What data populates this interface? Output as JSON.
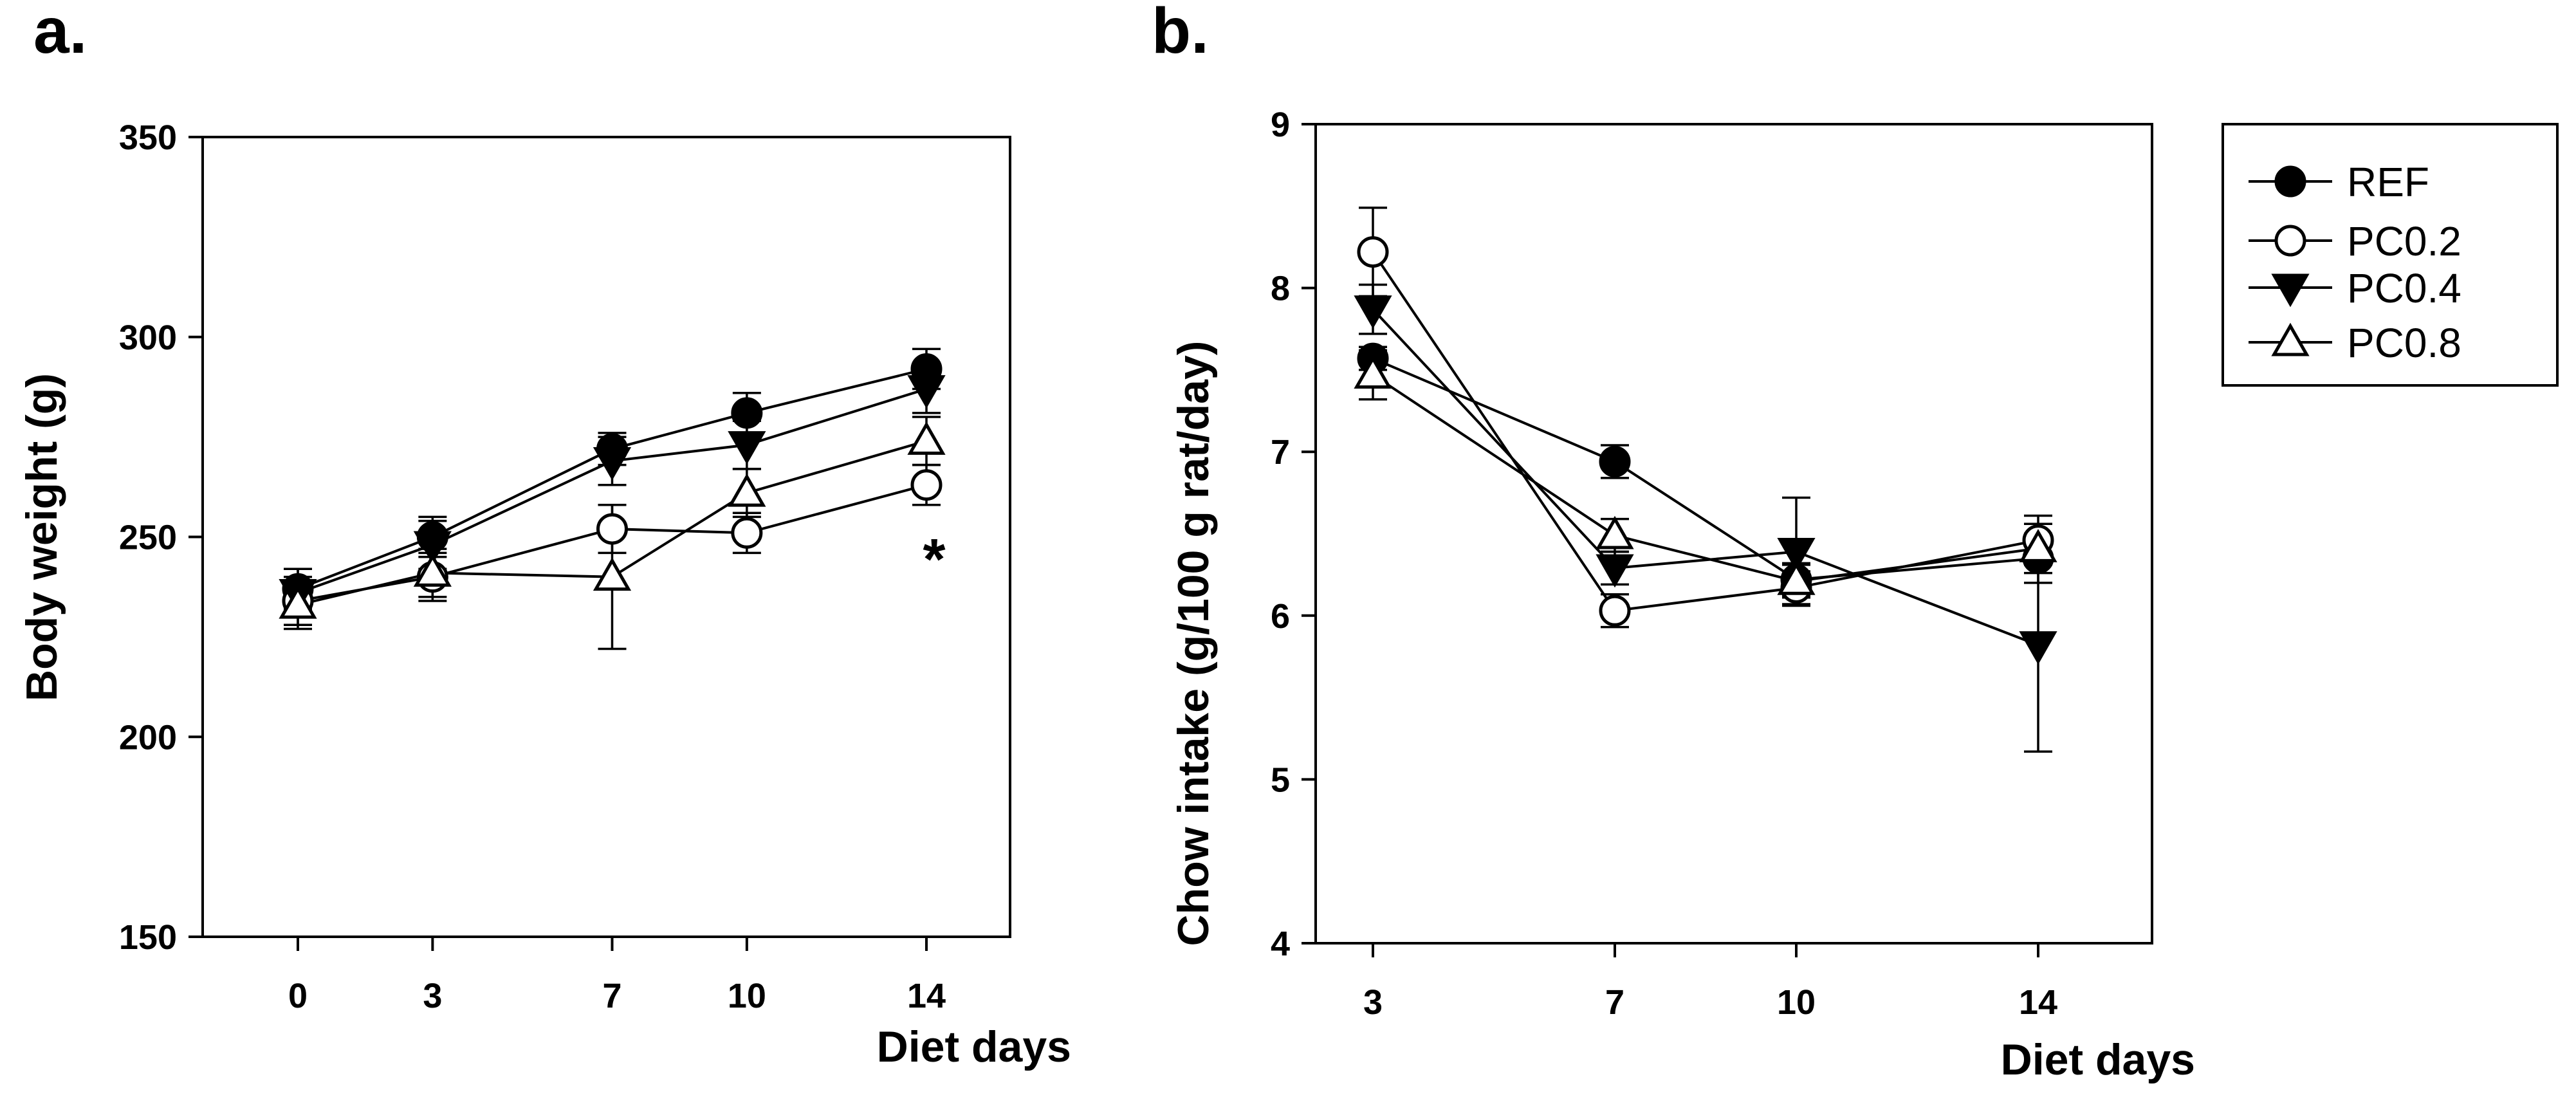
{
  "chart_data": [
    {
      "type": "line",
      "panel": "a.",
      "title": "",
      "ylabel": "Body weight (g)",
      "xlabel": "Diet days",
      "x": [
        0,
        3,
        7,
        10,
        14
      ],
      "xticks": [
        "0",
        "3",
        "7",
        "10",
        "14"
      ],
      "ylim": [
        150,
        350
      ],
      "yticks": [
        "150",
        "200",
        "250",
        "300",
        "350"
      ],
      "grid": false,
      "annotation": "*",
      "series": [
        {
          "name": "REF",
          "marker": "circle-filled",
          "values": [
            237,
            250,
            272,
            281,
            292
          ],
          "errors": [
            5,
            5,
            4,
            5,
            5
          ]
        },
        {
          "name": "PC0.2",
          "marker": "circle-open",
          "values": [
            234,
            240,
            252,
            251,
            263
          ],
          "errors": [
            6,
            6,
            6,
            5,
            5
          ]
        },
        {
          "name": "PC0.4",
          "marker": "triangle-down-filled",
          "values": [
            236,
            248,
            269,
            273,
            287
          ],
          "errors": [
            6,
            6,
            6,
            6,
            6
          ]
        },
        {
          "name": "PC0.8",
          "marker": "triangle-up-open",
          "values": [
            233,
            241,
            240,
            261,
            274
          ],
          "errors": [
            6,
            6,
            18,
            6,
            6
          ]
        }
      ]
    },
    {
      "type": "line",
      "panel": "b.",
      "title": "",
      "ylabel": "Chow intake (g/100 g rat/day)",
      "xlabel": "Diet days",
      "x": [
        3,
        7,
        10,
        14
      ],
      "xticks": [
        "3",
        "7",
        "10",
        "14"
      ],
      "ylim": [
        4,
        9
      ],
      "yticks": [
        "4",
        "5",
        "6",
        "7",
        "8",
        "9"
      ],
      "grid": false,
      "legend_position": "outside-right",
      "series": [
        {
          "name": "REF",
          "marker": "circle-filled",
          "values": [
            7.57,
            6.94,
            6.22,
            6.35
          ],
          "errors": [
            0.07,
            0.1,
            0.1,
            0.15
          ]
        },
        {
          "name": "PC0.2",
          "marker": "circle-open",
          "values": [
            8.22,
            6.03,
            6.17,
            6.46
          ],
          "errors": [
            0.27,
            0.1,
            0.1,
            0.15
          ]
        },
        {
          "name": "PC0.4",
          "marker": "triangle-down-filled",
          "values": [
            7.87,
            6.29,
            6.39,
            5.82
          ],
          "errors": [
            0.15,
            0.1,
            0.33,
            0.65
          ]
        },
        {
          "name": "PC0.8",
          "marker": "triangle-up-open",
          "values": [
            7.47,
            6.49,
            6.21,
            6.41
          ],
          "errors": [
            0.15,
            0.1,
            0.1,
            0.15
          ]
        }
      ]
    }
  ],
  "colors": {
    "ink": "#000000",
    "background": "#ffffff"
  }
}
